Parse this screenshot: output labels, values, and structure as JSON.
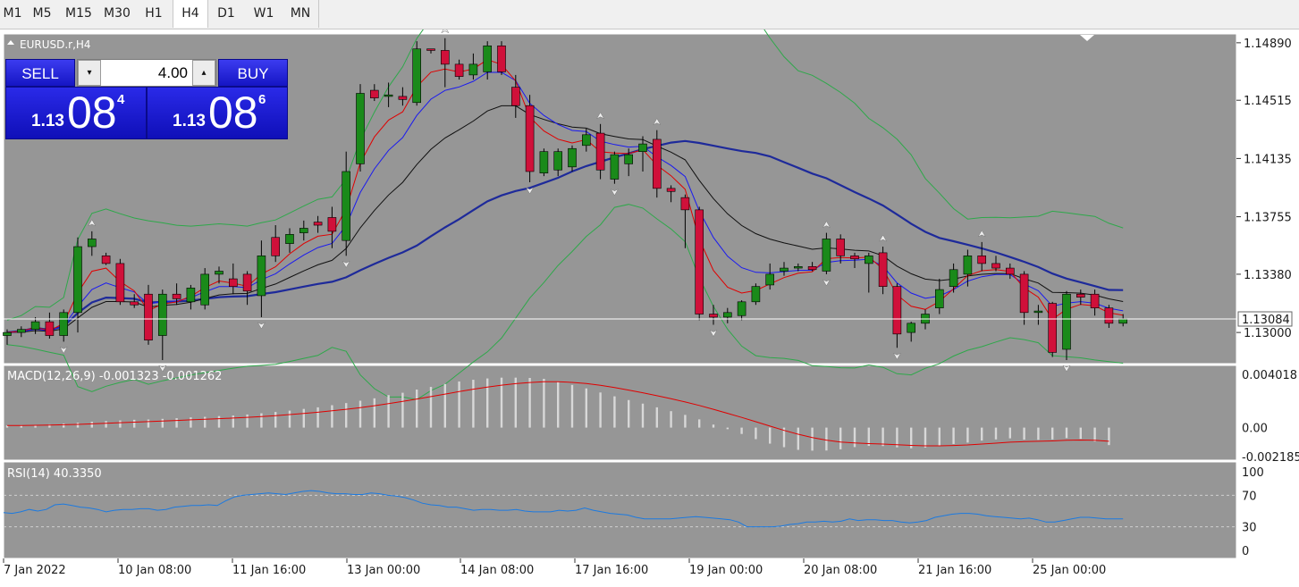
{
  "timeframes": [
    "M1",
    "M5",
    "M15",
    "M30",
    "H1",
    "H4",
    "D1",
    "W1",
    "MN"
  ],
  "active_timeframe": "H4",
  "chart": {
    "symbol_label": "EURUSD.r,H4",
    "price_axis": [
      "1.14890",
      "1.14515",
      "1.14135",
      "1.13755",
      "1.13380",
      "1.13000"
    ],
    "current_price_label": "1.13084",
    "price_min": 1.1282,
    "price_max": 1.1493,
    "current_price": 1.13084,
    "colors": {
      "background": "#969696",
      "bull": "#1a8a1a",
      "bear": "#d0103a",
      "ma_fast": "#e00000",
      "ma_mid": "#1a1af0",
      "ma_slow": "#101010",
      "ma_long": "#1e2a9a",
      "band": "#2ea84a",
      "rsi": "#1c7ae0",
      "macd_signal": "#e00000"
    }
  },
  "trade_panel": {
    "sell_label": "SELL",
    "buy_label": "BUY",
    "lot_value": "4.00",
    "sell_price_small": "1.13",
    "sell_price_big": "08",
    "sell_price_sup": "4",
    "buy_price_small": "1.13",
    "buy_price_big": "08",
    "buy_price_sup": "6",
    "down_icon": "▾",
    "up_icon": "▴"
  },
  "macd": {
    "label": "MACD(12,26,9) -0.001323 -0.001262",
    "axis": [
      "0.004018",
      "0.00",
      "-0.002185"
    ],
    "top": 0.004018,
    "bottom": -0.002185
  },
  "rsi": {
    "label": "RSI(14) 40.3350",
    "axis": [
      "100",
      "70",
      "30",
      "0"
    ],
    "levels": [
      70,
      30
    ]
  },
  "time_axis": [
    "7 Jan 2022",
    "10 Jan 08:00",
    "11 Jan 16:00",
    "13 Jan 00:00",
    "14 Jan 08:00",
    "17 Jan 16:00",
    "19 Jan 00:00",
    "20 Jan 08:00",
    "21 Jan 16:00",
    "25 Jan 00:00"
  ],
  "candles": [
    [
      1.1298,
      1.1302,
      1.1292,
      1.13
    ],
    [
      1.13,
      1.1304,
      1.1297,
      1.1302
    ],
    [
      1.1302,
      1.131,
      1.1299,
      1.1307
    ],
    [
      1.1307,
      1.1313,
      1.1296,
      1.1298
    ],
    [
      1.1298,
      1.1315,
      1.1294,
      1.1313
    ],
    [
      1.1313,
      1.1362,
      1.13,
      1.1356
    ],
    [
      1.1356,
      1.1366,
      1.135,
      1.1361
    ],
    [
      1.135,
      1.1352,
      1.1344,
      1.1345
    ],
    [
      1.1345,
      1.1348,
      1.1318,
      1.132
    ],
    [
      1.132,
      1.1325,
      1.1316,
      1.1318
    ],
    [
      1.1325,
      1.1331,
      1.1292,
      1.1295
    ],
    [
      1.1298,
      1.1328,
      1.1282,
      1.1325
    ],
    [
      1.1325,
      1.1332,
      1.1318,
      1.1322
    ],
    [
      1.132,
      1.1331,
      1.1315,
      1.1329
    ],
    [
      1.1318,
      1.1342,
      1.1315,
      1.1338
    ],
    [
      1.1338,
      1.1343,
      1.1332,
      1.134
    ],
    [
      1.1335,
      1.1345,
      1.1325,
      1.133
    ],
    [
      1.1338,
      1.134,
      1.1318,
      1.1327
    ],
    [
      1.1324,
      1.136,
      1.131,
      1.135
    ],
    [
      1.1362,
      1.137,
      1.1346,
      1.135
    ],
    [
      1.1358,
      1.1368,
      1.1352,
      1.1364
    ],
    [
      1.1365,
      1.1373,
      1.136,
      1.1368
    ],
    [
      1.1372,
      1.1376,
      1.1365,
      1.137
    ],
    [
      1.1375,
      1.1382,
      1.1355,
      1.1366
    ],
    [
      1.136,
      1.1418,
      1.135,
      1.1405
    ],
    [
      1.141,
      1.1462,
      1.1405,
      1.1456
    ],
    [
      1.1458,
      1.1462,
      1.1451,
      1.1453
    ],
    [
      1.1454,
      1.1463,
      1.1447,
      1.1455
    ],
    [
      1.1454,
      1.146,
      1.1448,
      1.1452
    ],
    [
      1.145,
      1.149,
      1.1448,
      1.1485
    ],
    [
      1.1485,
      1.1485,
      1.1482,
      1.1484
    ],
    [
      1.1484,
      1.1492,
      1.146,
      1.1475
    ],
    [
      1.1475,
      1.1478,
      1.1465,
      1.1467
    ],
    [
      1.1468,
      1.1482,
      1.1465,
      1.1475
    ],
    [
      1.147,
      1.149,
      1.1465,
      1.1487
    ],
    [
      1.1487,
      1.149,
      1.1468,
      1.147
    ],
    [
      1.146,
      1.1468,
      1.144,
      1.1448
    ],
    [
      1.1448,
      1.1455,
      1.1398,
      1.1405
    ],
    [
      1.1404,
      1.142,
      1.1402,
      1.1418
    ],
    [
      1.1406,
      1.142,
      1.1402,
      1.1418
    ],
    [
      1.1408,
      1.1422,
      1.1405,
      1.142
    ],
    [
      1.1422,
      1.1433,
      1.1418,
      1.1429
    ],
    [
      1.143,
      1.1436,
      1.14,
      1.1406
    ],
    [
      1.14,
      1.1418,
      1.1397,
      1.1416
    ],
    [
      1.141,
      1.142,
      1.1402,
      1.1416
    ],
    [
      1.1418,
      1.1428,
      1.1405,
      1.1423
    ],
    [
      1.1426,
      1.1432,
      1.1388,
      1.1394
    ],
    [
      1.1394,
      1.1396,
      1.1385,
      1.1392
    ],
    [
      1.1388,
      1.139,
      1.1355,
      1.138
    ],
    [
      1.138,
      1.1382,
      1.1308,
      1.1312
    ],
    [
      1.1312,
      1.1318,
      1.1305,
      1.131
    ],
    [
      1.131,
      1.1316,
      1.1306,
      1.1313
    ],
    [
      1.1311,
      1.1321,
      1.1308,
      1.132
    ],
    [
      1.132,
      1.1332,
      1.1318,
      1.133
    ],
    [
      1.1331,
      1.1345,
      1.1328,
      1.1338
    ],
    [
      1.134,
      1.1346,
      1.1337,
      1.1342
    ],
    [
      1.1342,
      1.1345,
      1.134,
      1.1343
    ],
    [
      1.1343,
      1.1346,
      1.134,
      1.1341
    ],
    [
      1.134,
      1.1365,
      1.1338,
      1.1361
    ],
    [
      1.1361,
      1.1364,
      1.1345,
      1.135
    ],
    [
      1.135,
      1.1352,
      1.1342,
      1.1348
    ],
    [
      1.1345,
      1.1352,
      1.1326,
      1.135
    ],
    [
      1.1352,
      1.1356,
      1.1325,
      1.133
    ],
    [
      1.133,
      1.1332,
      1.129,
      1.1299
    ],
    [
      1.13,
      1.1307,
      1.1294,
      1.1306
    ],
    [
      1.1306,
      1.1315,
      1.1302,
      1.1312
    ],
    [
      1.1316,
      1.1335,
      1.1312,
      1.1328
    ],
    [
      1.133,
      1.1345,
      1.1326,
      1.1341
    ],
    [
      1.1338,
      1.1354,
      1.133,
      1.135
    ],
    [
      1.135,
      1.1359,
      1.134,
      1.1345
    ],
    [
      1.1345,
      1.135,
      1.134,
      1.1342
    ],
    [
      1.1342,
      1.1345,
      1.1335,
      1.1338
    ],
    [
      1.1338,
      1.134,
      1.1305,
      1.1313
    ],
    [
      1.1313,
      1.1318,
      1.1305,
      1.1314
    ],
    [
      1.1319,
      1.132,
      1.1284,
      1.1287
    ],
    [
      1.1289,
      1.1327,
      1.1282,
      1.1325
    ],
    [
      1.1325,
      1.1328,
      1.1318,
      1.1323
    ],
    [
      1.1325,
      1.1328,
      1.1311,
      1.1316
    ],
    [
      1.1316,
      1.1318,
      1.1303,
      1.1306
    ],
    [
      1.1306,
      1.1312,
      1.1304,
      1.1309
    ]
  ],
  "macd_values": [
    0.00016,
    0.00018,
    0.00021,
    0.00025,
    0.00031,
    0.00037,
    0.00044,
    0.00049,
    0.00054,
    0.00059,
    0.00061,
    0.00066,
    0.00071,
    0.00077,
    0.00081,
    0.00087,
    0.00091,
    0.00099,
    0.00108,
    0.00118,
    0.00128,
    0.00141,
    0.00153,
    0.00169,
    0.00185,
    0.00203,
    0.00221,
    0.00245,
    0.00263,
    0.00287,
    0.00307,
    0.00329,
    0.00348,
    0.00361,
    0.00371,
    0.00377,
    0.00377,
    0.00375,
    0.00368,
    0.00348,
    0.00322,
    0.00296,
    0.00265,
    0.00236,
    0.00208,
    0.00181,
    0.00153,
    0.00124,
    0.00096,
    0.00062,
    0.00023,
    -0.00012,
    -0.00048,
    -0.00087,
    -0.00121,
    -0.00148,
    -0.00168,
    -0.00174,
    -0.00173,
    -0.00164,
    -0.00147,
    -0.00138,
    -0.00139,
    -0.00149,
    -0.00156,
    -0.00151,
    -0.00137,
    -0.00124,
    -0.00113,
    -0.00098,
    -0.00089,
    -0.00081,
    -0.00091,
    -0.00092,
    -0.00089,
    -0.00079,
    -0.00085,
    -0.00105,
    -0.00132
  ],
  "rsi_values": [
    48,
    47,
    49,
    52,
    50,
    52,
    58,
    59,
    57,
    55,
    54,
    52,
    49,
    51,
    52,
    52,
    53,
    53,
    51,
    52,
    55,
    56,
    57,
    57,
    58,
    57,
    63,
    68,
    70,
    71,
    72,
    73,
    72,
    71,
    73,
    75,
    76,
    75,
    73,
    72,
    72,
    71,
    71,
    73,
    72,
    70,
    69,
    67,
    64,
    60,
    58,
    57,
    55,
    55,
    53,
    51,
    52,
    52,
    51,
    51,
    52,
    50,
    49,
    49,
    49,
    51,
    50,
    51,
    54,
    51,
    49,
    47,
    46,
    45,
    42,
    40,
    40,
    40,
    40,
    41,
    42,
    43,
    42,
    41,
    40,
    39,
    36,
    30,
    30,
    30,
    30,
    31,
    33,
    34,
    36,
    36,
    37,
    36,
    37,
    40,
    38,
    39,
    39,
    38,
    38,
    36,
    35,
    36,
    38,
    42,
    44,
    46,
    47,
    47,
    46,
    44,
    43,
    42,
    41,
    40,
    41,
    39,
    36,
    36,
    38,
    40,
    42,
    42,
    41,
    40,
    40,
    40
  ]
}
